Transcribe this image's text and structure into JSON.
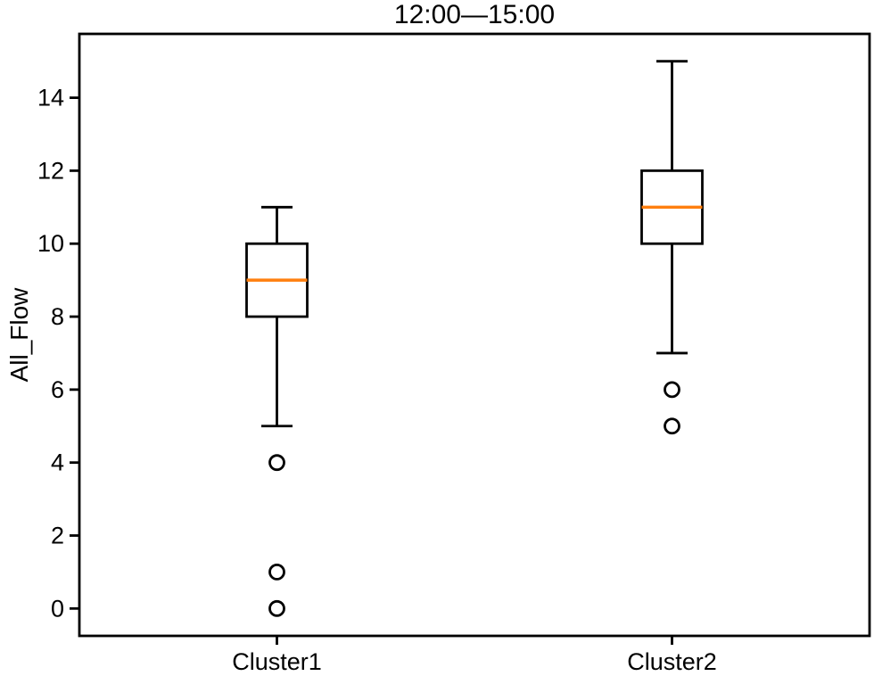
{
  "chart_data": {
    "type": "box",
    "title": "12:00—15:00",
    "ylabel": "All_Flow",
    "xlabel": "",
    "categories": [
      "Cluster1",
      "Cluster2"
    ],
    "y_ticks": [
      0,
      2,
      4,
      6,
      8,
      10,
      12,
      14
    ],
    "ylim": [
      -0.75,
      15.75
    ],
    "grid": false,
    "legend": "none",
    "colors": {
      "median": "#ff7f0e",
      "line": "#000000",
      "background": "#ffffff"
    },
    "series": [
      {
        "name": "Cluster1",
        "whisker_low": 5,
        "q1": 8,
        "median": 9,
        "q3": 10,
        "whisker_high": 11,
        "outliers": [
          4,
          1,
          0
        ]
      },
      {
        "name": "Cluster2",
        "whisker_low": 7,
        "q1": 10,
        "median": 11,
        "q3": 12,
        "whisker_high": 15,
        "outliers": [
          6,
          5
        ]
      }
    ]
  }
}
